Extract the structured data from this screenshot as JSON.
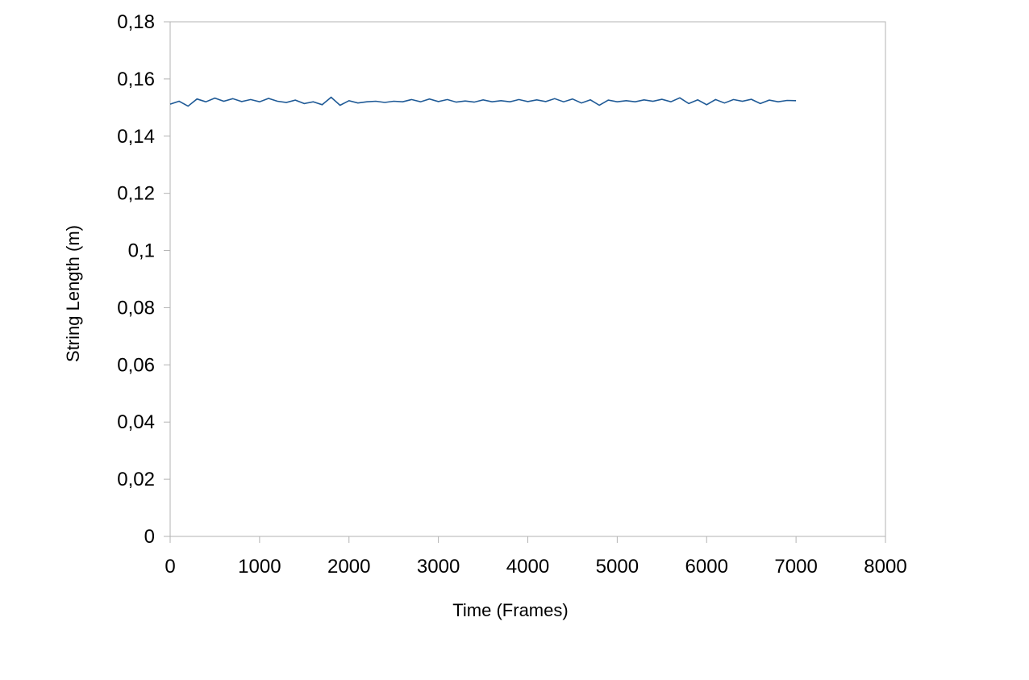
{
  "chart_data": {
    "type": "line",
    "title": "",
    "xlabel": "Time (Frames)",
    "ylabel": "String Length (m)",
    "xlim": [
      0,
      8000
    ],
    "ylim": [
      0,
      0.18
    ],
    "xticks": [
      "0",
      "1000",
      "2000",
      "3000",
      "4000",
      "5000",
      "6000",
      "7000",
      "8000"
    ],
    "yticks": [
      "0",
      "0,02",
      "0,04",
      "0,06",
      "0,08",
      "0,1",
      "0,12",
      "0,14",
      "0,16",
      "0,18"
    ],
    "grid": false,
    "legend": "none",
    "line_color": "#1f5a96",
    "series": [
      {
        "x": [
          0,
          100,
          200,
          300,
          400,
          500,
          600,
          700,
          800,
          900,
          1000,
          1100,
          1200,
          1300,
          1400,
          1500,
          1600,
          1700,
          1800,
          1900,
          2000,
          2100,
          2200,
          2300,
          2400,
          2500,
          2600,
          2700,
          2800,
          2900,
          3000,
          3100,
          3200,
          3300,
          3400,
          3500,
          3600,
          3700,
          3800,
          3900,
          4000,
          4100,
          4200,
          4300,
          4400,
          4500,
          4600,
          4700,
          4800,
          4900,
          5000,
          5100,
          5200,
          5300,
          5400,
          5500,
          5600,
          5700,
          5800,
          5900,
          6000,
          6100,
          6200,
          6300,
          6400,
          6500,
          6600,
          6700,
          6800,
          6900,
          7000
        ],
        "y": [
          0.1512,
          0.1522,
          0.1505,
          0.153,
          0.152,
          0.1533,
          0.1522,
          0.1531,
          0.1521,
          0.1528,
          0.152,
          0.1532,
          0.1522,
          0.1518,
          0.1526,
          0.1514,
          0.152,
          0.151,
          0.1536,
          0.1508,
          0.1524,
          0.1516,
          0.152,
          0.1522,
          0.1518,
          0.1522,
          0.152,
          0.1528,
          0.152,
          0.153,
          0.1521,
          0.1528,
          0.1519,
          0.1523,
          0.1519,
          0.1527,
          0.152,
          0.1524,
          0.152,
          0.1528,
          0.1521,
          0.1527,
          0.1521,
          0.1531,
          0.152,
          0.153,
          0.1516,
          0.1527,
          0.1508,
          0.1526,
          0.152,
          0.1524,
          0.152,
          0.1527,
          0.1522,
          0.1529,
          0.152,
          0.1534,
          0.1514,
          0.1527,
          0.151,
          0.1528,
          0.1516,
          0.1528,
          0.1522,
          0.1529,
          0.1514,
          0.1526,
          0.152,
          0.1525,
          0.1524
        ]
      }
    ]
  }
}
